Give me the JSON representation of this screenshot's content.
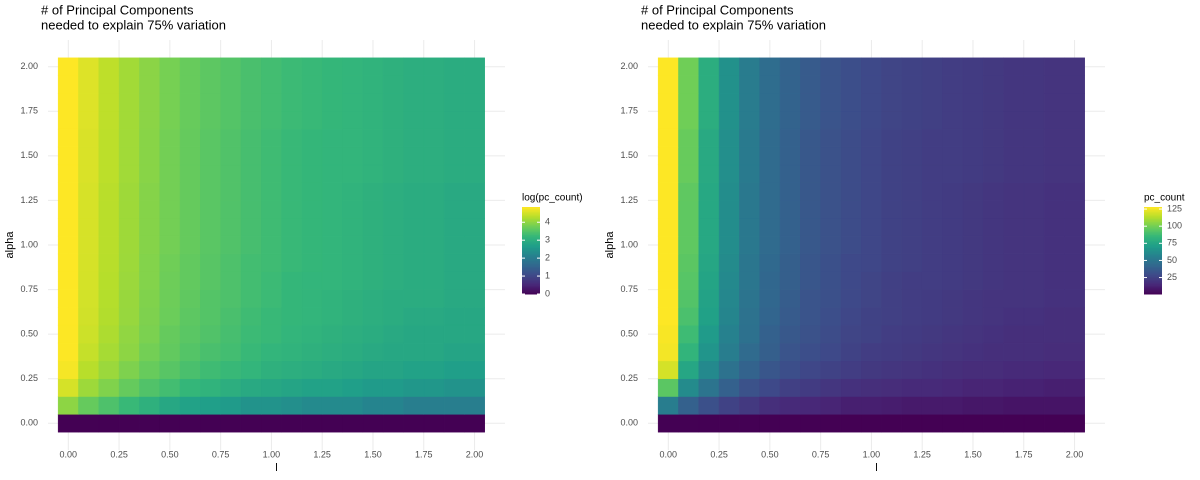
{
  "chart_data": [
    {
      "type": "heatmap",
      "title": [
        "# of Principal Components",
        " needed to explain 75% variation"
      ],
      "xlabel": "l",
      "ylabel": "alpha",
      "legend_title": "log(pc_count)",
      "x": [
        0,
        0.1,
        0.2,
        0.3,
        0.4,
        0.5,
        0.6,
        0.7,
        0.8,
        0.9,
        1.0,
        1.1,
        1.2,
        1.3,
        1.4,
        1.5,
        1.6,
        1.7,
        1.8,
        1.9,
        2.0
      ],
      "y": [
        0,
        0.1,
        0.2,
        0.3,
        0.4,
        0.5,
        0.6,
        0.7,
        0.8,
        0.9,
        1.0,
        1.1,
        1.2,
        1.3,
        1.4,
        1.5,
        1.6,
        1.7,
        1.8,
        1.9,
        2.0
      ],
      "values": [
        [
          0,
          0,
          0,
          0,
          0,
          0,
          0,
          0,
          0,
          0,
          0,
          0,
          0,
          0,
          0,
          0,
          0,
          0,
          0,
          0,
          0
        ],
        [
          4.01,
          3.69,
          3.47,
          3.26,
          3.09,
          2.89,
          2.77,
          2.71,
          2.64,
          2.48,
          2.48,
          2.4,
          2.3,
          2.3,
          2.3,
          2.2,
          2.2,
          2.08,
          2.08,
          2.08,
          2.08
        ],
        [
          4.55,
          4.13,
          3.91,
          3.69,
          3.5,
          3.37,
          3.22,
          3.14,
          3.04,
          2.94,
          2.89,
          2.83,
          2.77,
          2.77,
          2.71,
          2.64,
          2.64,
          2.56,
          2.56,
          2.48,
          2.48
        ],
        [
          4.79,
          4.33,
          4.11,
          3.89,
          3.71,
          3.56,
          3.43,
          3.33,
          3.26,
          3.18,
          3.09,
          3.04,
          3.0,
          2.94,
          2.89,
          2.83,
          2.83,
          2.77,
          2.77,
          2.71,
          2.71
        ],
        [
          4.84,
          4.43,
          4.2,
          4.01,
          3.81,
          3.66,
          3.53,
          3.43,
          3.37,
          3.26,
          3.18,
          3.14,
          3.09,
          3.04,
          3.0,
          2.94,
          2.89,
          2.89,
          2.89,
          2.83,
          2.83
        ],
        [
          4.84,
          4.48,
          4.25,
          4.04,
          3.87,
          3.69,
          3.58,
          3.5,
          3.4,
          3.3,
          3.26,
          3.18,
          3.14,
          3.09,
          3.04,
          3.0,
          2.94,
          2.89,
          2.89,
          2.89,
          2.89
        ],
        [
          4.85,
          4.51,
          4.29,
          4.08,
          3.89,
          3.74,
          3.61,
          3.53,
          3.43,
          3.33,
          3.26,
          3.22,
          3.18,
          3.14,
          3.09,
          3.04,
          3.0,
          2.94,
          2.94,
          2.89,
          2.89
        ],
        [
          4.85,
          4.53,
          4.3,
          4.09,
          3.91,
          3.76,
          3.64,
          3.53,
          3.47,
          3.37,
          3.3,
          3.22,
          3.18,
          3.14,
          3.09,
          3.04,
          3.0,
          3.0,
          3.0,
          2.94,
          2.94
        ],
        [
          4.85,
          4.54,
          4.32,
          4.11,
          3.93,
          3.76,
          3.66,
          3.56,
          3.47,
          3.37,
          3.3,
          3.22,
          3.18,
          3.18,
          3.14,
          3.09,
          3.04,
          3.0,
          3.0,
          2.94,
          2.94
        ],
        [
          4.85,
          4.55,
          4.33,
          4.13,
          3.93,
          3.78,
          3.66,
          3.56,
          3.47,
          3.37,
          3.33,
          3.26,
          3.22,
          3.18,
          3.14,
          3.09,
          3.04,
          3.0,
          3.0,
          2.94,
          2.94
        ],
        [
          4.85,
          4.56,
          4.34,
          4.14,
          3.95,
          3.81,
          3.69,
          3.58,
          3.5,
          3.4,
          3.33,
          3.26,
          3.22,
          3.18,
          3.14,
          3.09,
          3.04,
          3.0,
          3.0,
          2.94,
          2.94
        ],
        [
          4.85,
          4.56,
          4.34,
          4.14,
          3.95,
          3.81,
          3.69,
          3.58,
          3.5,
          3.4,
          3.33,
          3.26,
          3.22,
          3.18,
          3.14,
          3.09,
          3.04,
          3.0,
          3.0,
          2.94,
          2.94
        ],
        [
          4.85,
          4.56,
          4.34,
          4.14,
          3.95,
          3.81,
          3.69,
          3.58,
          3.5,
          3.4,
          3.33,
          3.26,
          3.22,
          3.18,
          3.14,
          3.09,
          3.04,
          3.0,
          3.0,
          2.94,
          2.94
        ],
        [
          4.85,
          4.56,
          4.34,
          4.14,
          3.95,
          3.81,
          3.69,
          3.58,
          3.5,
          3.4,
          3.33,
          3.26,
          3.22,
          3.18,
          3.14,
          3.09,
          3.04,
          3.0,
          3.0,
          2.94,
          2.94
        ],
        [
          4.85,
          4.58,
          4.36,
          4.16,
          3.97,
          3.81,
          3.69,
          3.58,
          3.5,
          3.4,
          3.33,
          3.26,
          3.22,
          3.18,
          3.18,
          3.14,
          3.09,
          3.04,
          3.04,
          3.0,
          3.0
        ],
        [
          4.85,
          4.58,
          4.36,
          4.16,
          3.97,
          3.81,
          3.69,
          3.58,
          3.5,
          3.4,
          3.33,
          3.26,
          3.22,
          3.18,
          3.18,
          3.14,
          3.09,
          3.04,
          3.04,
          3.0,
          3.0
        ],
        [
          4.85,
          4.58,
          4.36,
          4.16,
          3.97,
          3.81,
          3.69,
          3.58,
          3.5,
          3.4,
          3.33,
          3.26,
          3.22,
          3.18,
          3.18,
          3.14,
          3.09,
          3.04,
          3.04,
          3.0,
          3.0
        ],
        [
          4.85,
          4.61,
          4.38,
          4.17,
          3.99,
          3.83,
          3.71,
          3.61,
          3.53,
          3.43,
          3.37,
          3.3,
          3.26,
          3.22,
          3.18,
          3.14,
          3.09,
          3.04,
          3.04,
          3.0,
          3.0
        ],
        [
          4.85,
          4.61,
          4.38,
          4.17,
          3.99,
          3.83,
          3.71,
          3.61,
          3.53,
          3.43,
          3.37,
          3.3,
          3.26,
          3.22,
          3.18,
          3.14,
          3.09,
          3.04,
          3.04,
          3.0,
          3.0
        ],
        [
          4.85,
          4.61,
          4.38,
          4.17,
          3.99,
          3.83,
          3.71,
          3.61,
          3.53,
          3.43,
          3.37,
          3.3,
          3.26,
          3.22,
          3.18,
          3.14,
          3.09,
          3.04,
          3.04,
          3.0,
          3.0
        ],
        [
          4.85,
          4.61,
          4.38,
          4.17,
          3.99,
          3.83,
          3.71,
          3.61,
          3.53,
          3.43,
          3.37,
          3.3,
          3.26,
          3.22,
          3.18,
          3.14,
          3.09,
          3.04,
          3.04,
          3.0,
          3.0
        ]
      ],
      "colorlim": [
        0,
        4.85
      ],
      "cticks": [
        0,
        1,
        2,
        3,
        4
      ],
      "colormap": [
        "#440154",
        "#482878",
        "#3e4a89",
        "#31688e",
        "#26828e",
        "#1f9e89",
        "#35b779",
        "#6ece58",
        "#b5de2b",
        "#fde725"
      ],
      "xlim": [
        -0.1,
        2.15
      ],
      "ylim": [
        -0.15,
        2.15
      ],
      "xticks": [
        {
          "value": 0,
          "label": "0.00"
        },
        {
          "value": 0.25,
          "label": "0.25"
        },
        {
          "value": 0.5,
          "label": "0.50"
        },
        {
          "value": 0.75,
          "label": "0.75"
        },
        {
          "value": 1,
          "label": "1.00"
        },
        {
          "value": 1.25,
          "label": "1.25"
        },
        {
          "value": 1.5,
          "label": "1.50"
        },
        {
          "value": 1.75,
          "label": "1.75"
        },
        {
          "value": 2,
          "label": "2.00"
        }
      ],
      "yticks": [
        {
          "value": 0,
          "label": "0.00"
        },
        {
          "value": 0.25,
          "label": "0.25"
        },
        {
          "value": 0.5,
          "label": "0.50"
        },
        {
          "value": 0.75,
          "label": "0.75"
        },
        {
          "value": 1,
          "label": "1.00"
        },
        {
          "value": 1.25,
          "label": "1.25"
        },
        {
          "value": 1.5,
          "label": "1.50"
        },
        {
          "value": 1.75,
          "label": "1.75"
        },
        {
          "value": 2,
          "label": "2.00"
        }
      ],
      "grid": true
    },
    {
      "type": "heatmap",
      "title": [
        "# of Principal Components",
        " needed to explain 75% variation"
      ],
      "xlabel": "l",
      "ylabel": "alpha",
      "legend_title": "pc_count",
      "x": [
        0,
        0.1,
        0.2,
        0.3,
        0.4,
        0.5,
        0.6,
        0.7,
        0.8,
        0.9,
        1.0,
        1.1,
        1.2,
        1.3,
        1.4,
        1.5,
        1.6,
        1.7,
        1.8,
        1.9,
        2.0
      ],
      "y": [
        0,
        0.1,
        0.2,
        0.3,
        0.4,
        0.5,
        0.6,
        0.7,
        0.8,
        0.9,
        1.0,
        1.1,
        1.2,
        1.3,
        1.4,
        1.5,
        1.6,
        1.7,
        1.8,
        1.9,
        2.0
      ],
      "values": [
        [
          1,
          1,
          1,
          1,
          1,
          1,
          1,
          1,
          1,
          1,
          1,
          1,
          1,
          1,
          1,
          1,
          1,
          1,
          1,
          1,
          1
        ],
        [
          55,
          40,
          32,
          26,
          22,
          18,
          16,
          15,
          14,
          12,
          12,
          11,
          10,
          10,
          10,
          9,
          9,
          8,
          8,
          8,
          8
        ],
        [
          95,
          62,
          50,
          40,
          33,
          29,
          25,
          23,
          21,
          19,
          18,
          17,
          16,
          16,
          15,
          14,
          14,
          13,
          13,
          12,
          12
        ],
        [
          120,
          76,
          61,
          49,
          41,
          35,
          31,
          28,
          26,
          24,
          22,
          21,
          20,
          19,
          18,
          17,
          17,
          16,
          16,
          15,
          15
        ],
        [
          126,
          84,
          67,
          55,
          45,
          39,
          34,
          31,
          29,
          26,
          24,
          23,
          22,
          21,
          20,
          19,
          18,
          18,
          18,
          17,
          17
        ],
        [
          127,
          88,
          70,
          57,
          48,
          40,
          36,
          33,
          30,
          27,
          26,
          24,
          23,
          22,
          21,
          20,
          19,
          18,
          18,
          18,
          18
        ],
        [
          128,
          91,
          73,
          59,
          49,
          42,
          37,
          34,
          31,
          28,
          26,
          25,
          24,
          23,
          22,
          21,
          20,
          19,
          19,
          18,
          18
        ],
        [
          128,
          93,
          74,
          60,
          50,
          43,
          38,
          34,
          32,
          29,
          27,
          25,
          24,
          23,
          22,
          21,
          20,
          20,
          20,
          19,
          19
        ],
        [
          128,
          94,
          75,
          61,
          51,
          43,
          39,
          35,
          32,
          29,
          27,
          25,
          24,
          24,
          23,
          22,
          21,
          20,
          20,
          19,
          19
        ],
        [
          128,
          95,
          76,
          62,
          51,
          44,
          39,
          35,
          32,
          29,
          28,
          26,
          25,
          24,
          23,
          22,
          21,
          20,
          20,
          19,
          19
        ],
        [
          128,
          96,
          77,
          63,
          52,
          45,
          40,
          36,
          33,
          30,
          28,
          26,
          25,
          24,
          23,
          22,
          21,
          20,
          20,
          19,
          19
        ],
        [
          128,
          96,
          77,
          63,
          52,
          45,
          40,
          36,
          33,
          30,
          28,
          26,
          25,
          24,
          23,
          22,
          21,
          20,
          20,
          19,
          19
        ],
        [
          128,
          96,
          77,
          63,
          52,
          45,
          40,
          36,
          33,
          30,
          28,
          26,
          25,
          24,
          23,
          22,
          21,
          20,
          20,
          19,
          19
        ],
        [
          128,
          96,
          77,
          63,
          52,
          45,
          40,
          36,
          33,
          30,
          28,
          26,
          25,
          24,
          23,
          22,
          21,
          20,
          20,
          19,
          19
        ],
        [
          128,
          98,
          78,
          64,
          53,
          45,
          40,
          36,
          33,
          30,
          28,
          26,
          25,
          24,
          24,
          23,
          22,
          21,
          21,
          20,
          20
        ],
        [
          128,
          98,
          78,
          64,
          53,
          45,
          40,
          36,
          33,
          30,
          28,
          26,
          25,
          24,
          24,
          23,
          22,
          21,
          21,
          20,
          20
        ],
        [
          128,
          98,
          78,
          64,
          53,
          45,
          40,
          36,
          33,
          30,
          28,
          26,
          25,
          24,
          24,
          23,
          22,
          21,
          21,
          20,
          20
        ],
        [
          128,
          100,
          80,
          65,
          54,
          46,
          41,
          37,
          34,
          31,
          29,
          27,
          26,
          25,
          24,
          23,
          22,
          21,
          21,
          20,
          20
        ],
        [
          128,
          100,
          80,
          65,
          54,
          46,
          41,
          37,
          34,
          31,
          29,
          27,
          26,
          25,
          24,
          23,
          22,
          21,
          21,
          20,
          20
        ],
        [
          128,
          100,
          80,
          65,
          54,
          46,
          41,
          37,
          34,
          31,
          29,
          27,
          26,
          25,
          24,
          23,
          22,
          21,
          21,
          20,
          20
        ],
        [
          128,
          100,
          80,
          65,
          54,
          46,
          41,
          37,
          34,
          31,
          29,
          27,
          26,
          25,
          24,
          23,
          22,
          21,
          21,
          20,
          20
        ]
      ],
      "colorlim": [
        1,
        128
      ],
      "cticks": [
        25,
        50,
        75,
        100,
        125
      ],
      "colormap": [
        "#440154",
        "#482878",
        "#3e4a89",
        "#31688e",
        "#26828e",
        "#1f9e89",
        "#35b779",
        "#6ece58",
        "#b5de2b",
        "#fde725"
      ],
      "xlim": [
        -0.1,
        2.15
      ],
      "ylim": [
        -0.15,
        2.15
      ],
      "xticks": [
        {
          "value": 0,
          "label": "0.00"
        },
        {
          "value": 0.25,
          "label": "0.25"
        },
        {
          "value": 0.5,
          "label": "0.50"
        },
        {
          "value": 0.75,
          "label": "0.75"
        },
        {
          "value": 1,
          "label": "1.00"
        },
        {
          "value": 1.25,
          "label": "1.25"
        },
        {
          "value": 1.5,
          "label": "1.50"
        },
        {
          "value": 1.75,
          "label": "1.75"
        },
        {
          "value": 2,
          "label": "2.00"
        }
      ],
      "yticks": [
        {
          "value": 0,
          "label": "0.00"
        },
        {
          "value": 0.25,
          "label": "0.25"
        },
        {
          "value": 0.5,
          "label": "0.50"
        },
        {
          "value": 0.75,
          "label": "0.75"
        },
        {
          "value": 1,
          "label": "1.00"
        },
        {
          "value": 1.25,
          "label": "1.25"
        },
        {
          "value": 1.5,
          "label": "1.50"
        },
        {
          "value": 1.75,
          "label": "1.75"
        },
        {
          "value": 2,
          "label": "2.00"
        }
      ],
      "grid": true
    }
  ]
}
